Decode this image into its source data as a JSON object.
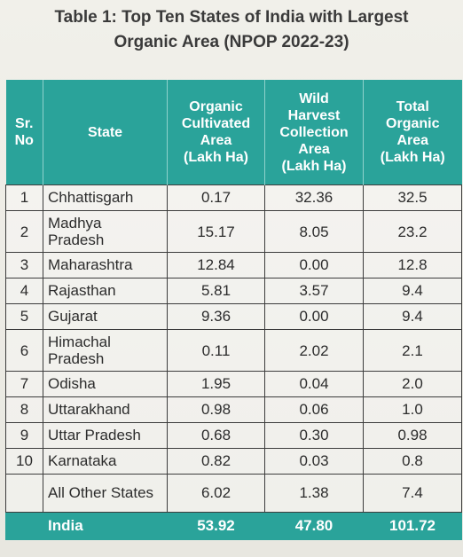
{
  "title": {
    "line1": "Table 1: Top Ten States of India with Largest",
    "line2": "Organic Area (NPOP 2022-23)"
  },
  "table": {
    "headers": {
      "sr": [
        "Sr.",
        "No"
      ],
      "state": [
        "State"
      ],
      "organic": [
        "Organic",
        "Cultivated",
        "Area",
        "(Lakh Ha)"
      ],
      "wild": [
        "Wild",
        "Harvest",
        "Collection",
        "Area",
        "(Lakh Ha)"
      ],
      "total": [
        "Total",
        "Organic",
        "Area",
        "(Lakh Ha)"
      ]
    },
    "rows": [
      {
        "sr": "1",
        "state": [
          "Chhattisgarh"
        ],
        "organic": "0.17",
        "wild": "32.36",
        "total": "32.5"
      },
      {
        "sr": "2",
        "state": [
          "Madhya",
          "Pradesh"
        ],
        "organic": "15.17",
        "wild": "8.05",
        "total": "23.2"
      },
      {
        "sr": "3",
        "state": [
          "Maharashtra"
        ],
        "organic": "12.84",
        "wild": "0.00",
        "total": "12.8"
      },
      {
        "sr": "4",
        "state": [
          "Rajasthan"
        ],
        "organic": "5.81",
        "wild": "3.57",
        "total": "9.4"
      },
      {
        "sr": "5",
        "state": [
          "Gujarat"
        ],
        "organic": "9.36",
        "wild": "0.00",
        "total": "9.4"
      },
      {
        "sr": "6",
        "state": [
          "Himachal",
          "Pradesh"
        ],
        "organic": "0.11",
        "wild": "2.02",
        "total": "2.1"
      },
      {
        "sr": "7",
        "state": [
          "Odisha"
        ],
        "organic": "1.95",
        "wild": "0.04",
        "total": "2.0"
      },
      {
        "sr": "8",
        "state": [
          "Uttarakhand"
        ],
        "organic": "0.98",
        "wild": "0.06",
        "total": "1.0"
      },
      {
        "sr": "9",
        "state": [
          "Uttar Pradesh"
        ],
        "organic": "0.68",
        "wild": "0.30",
        "total": "0.98"
      },
      {
        "sr": "10",
        "state": [
          "Karnataka"
        ],
        "organic": "0.82",
        "wild": "0.03",
        "total": "0.8"
      },
      {
        "sr": "",
        "state": [
          "All Other States"
        ],
        "organic": "6.02",
        "wild": "1.38",
        "total": "7.4"
      }
    ],
    "total": {
      "label": "India",
      "organic": "53.92",
      "wild": "47.80",
      "total": "101.72"
    }
  },
  "colors": {
    "header_bg": "#2aa39a",
    "header_text": "#ffffff",
    "title_text": "#3a3a3a"
  }
}
